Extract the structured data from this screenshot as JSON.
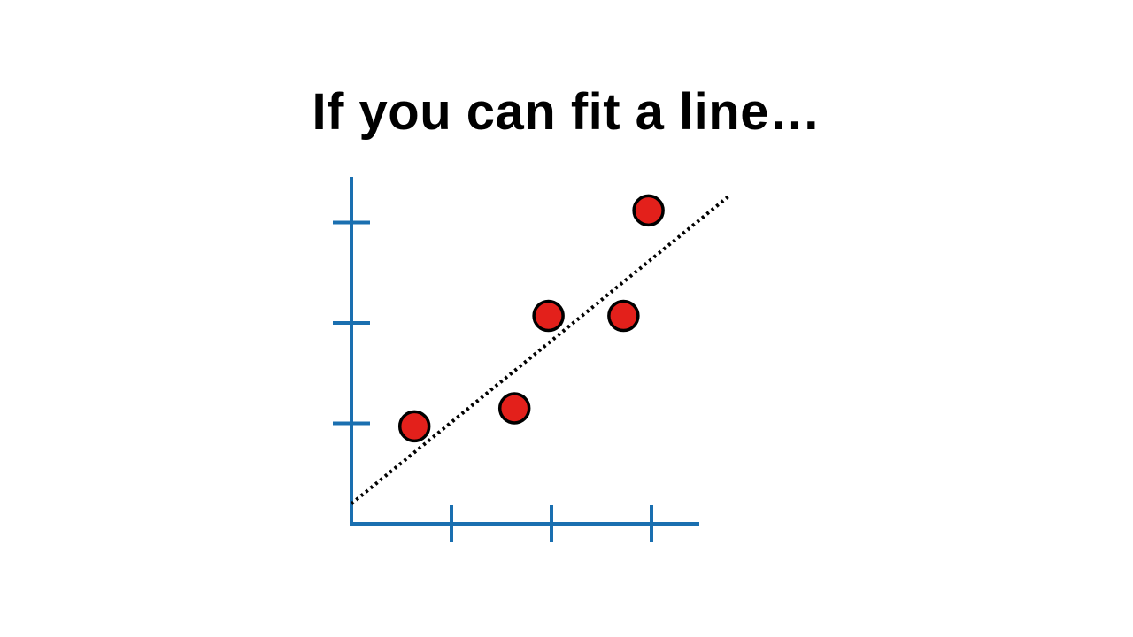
{
  "slide": {
    "title": "If you can fit a line…"
  },
  "colors": {
    "axis": "#1a6fb0",
    "point_fill": "#e3201b",
    "point_stroke": "#000000",
    "fit_line": "#000000"
  },
  "chart_data": {
    "type": "scatter",
    "title": "",
    "xlabel": "",
    "ylabel": "",
    "xlim": [
      0,
      3.5
    ],
    "ylim": [
      0,
      3.05
    ],
    "xticks": [
      1,
      2,
      3
    ],
    "yticks": [
      1,
      2,
      3
    ],
    "tick_labels_shown": false,
    "grid": false,
    "points": [
      {
        "x": 0.63,
        "y": 0.97
      },
      {
        "x": 1.63,
        "y": 1.15
      },
      {
        "x": 1.97,
        "y": 2.07
      },
      {
        "x": 2.72,
        "y": 2.07
      },
      {
        "x": 2.97,
        "y": 3.12
      }
    ],
    "fit_line": {
      "style": "dotted",
      "from": {
        "x": 0,
        "y": 0.2
      },
      "to": {
        "x": 3.77,
        "y": 3.26
      }
    }
  }
}
